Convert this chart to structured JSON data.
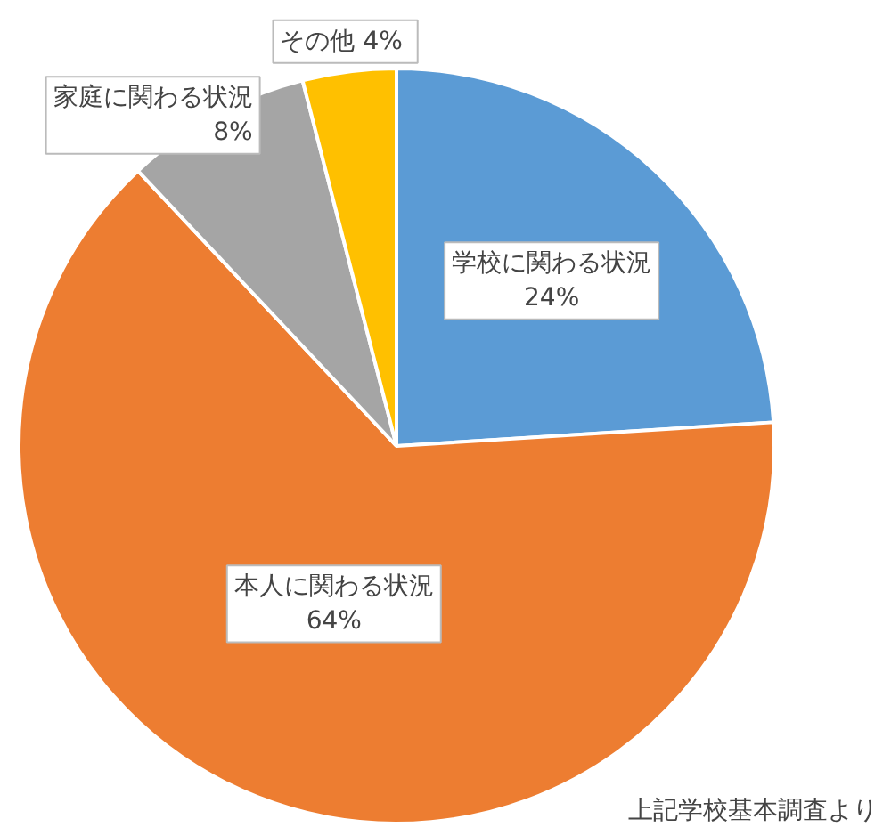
{
  "chart_data": {
    "type": "pie",
    "categories": [
      "学校に関わる状況",
      "本人に関わる状況",
      "家庭に関わる状況",
      "その他"
    ],
    "values": [
      24,
      64,
      8,
      4
    ],
    "colors": [
      "#5b9bd5",
      "#ed7d31",
      "#a5a5a5",
      "#ffc000"
    ],
    "value_labels": [
      "24%",
      "64%",
      "8%",
      "4%"
    ],
    "annotations": [
      "上記学校基本調査より"
    ]
  }
}
